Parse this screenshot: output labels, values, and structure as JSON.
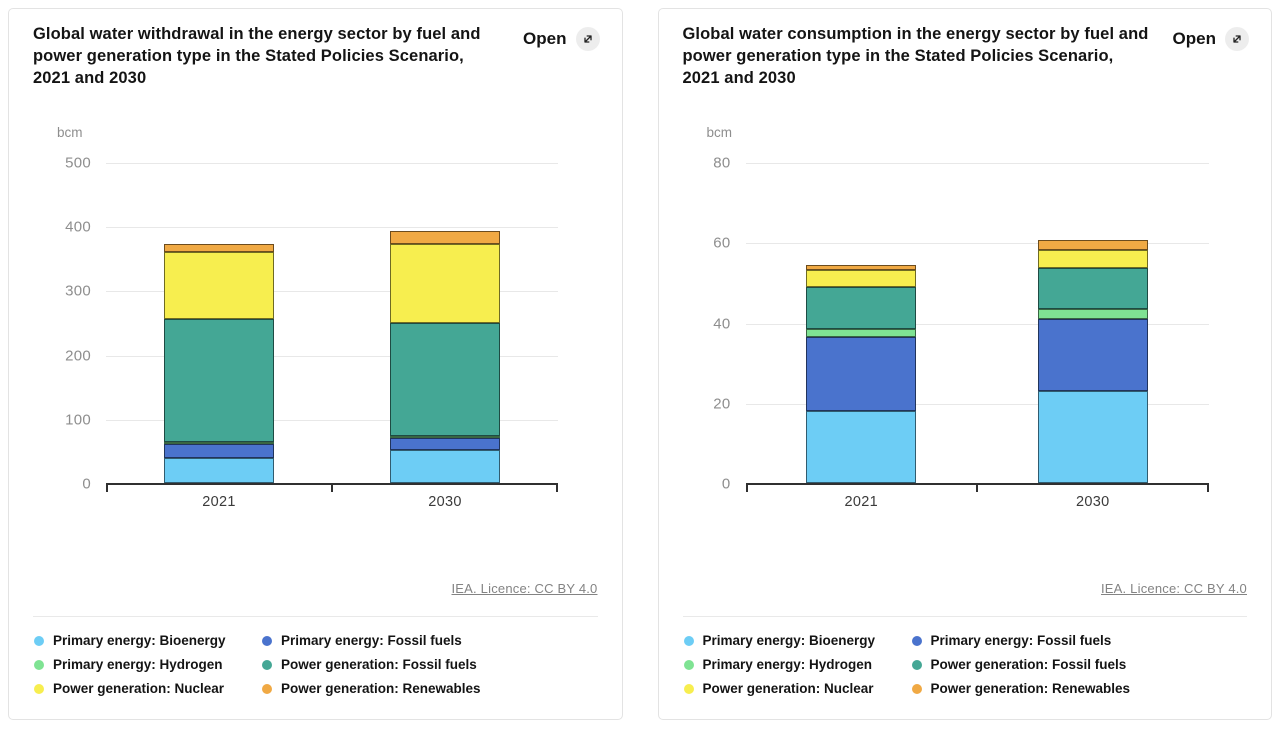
{
  "cards": [
    {
      "title": "Global water withdrawal in the energy sector by fuel and power generation type in the Stated Policies Scenario, 2021 and 2030",
      "open_label": "Open",
      "source": "IEA. Licence: CC BY 4.0"
    },
    {
      "title": "Global water consumption in the energy sector by fuel and power generation type in the Stated Policies Scenario, 2021 and 2030",
      "open_label": "Open",
      "source": "IEA. Licence: CC BY 4.0"
    }
  ],
  "chart_data": [
    {
      "type": "bar",
      "stacked": true,
      "title": "Global water withdrawal in the energy sector by fuel and power generation type in the Stated Policies Scenario, 2021 and 2030",
      "unit": "bcm",
      "categories": [
        "2021",
        "2030"
      ],
      "series": [
        {
          "name": "Primary energy: Bioenergy",
          "color": "#6DCDF5",
          "values": [
            39,
            51
          ]
        },
        {
          "name": "Primary energy: Fossil fuels",
          "color": "#4A73CD",
          "values": [
            22,
            20
          ]
        },
        {
          "name": "Primary energy: Hydrogen",
          "color": "#7FE393",
          "values": [
            1,
            3
          ]
        },
        {
          "name": "Power generation: Fossil fuels",
          "color": "#44A795",
          "values": [
            191,
            175
          ]
        },
        {
          "name": "Power generation: Nuclear",
          "color": "#F7EE4F",
          "values": [
            105,
            124
          ]
        },
        {
          "name": "Power generation: Renewables",
          "color": "#F0A944",
          "values": [
            13,
            19
          ]
        }
      ],
      "totals": [
        371,
        392
      ],
      "ylim": [
        0,
        500
      ],
      "yticks": [
        0,
        100,
        200,
        300,
        400,
        500
      ],
      "grid": true,
      "legend_position": "bottom",
      "source": "IEA. Licence: CC BY 4.0"
    },
    {
      "type": "bar",
      "stacked": true,
      "title": "Global water consumption in the energy sector by fuel and power generation type in the Stated Policies Scenario, 2021 and 2030",
      "unit": "bcm",
      "categories": [
        "2021",
        "2030"
      ],
      "series": [
        {
          "name": "Primary energy: Bioenergy",
          "color": "#6DCDF5",
          "values": [
            18,
            23
          ]
        },
        {
          "name": "Primary energy: Fossil fuels",
          "color": "#4A73CD",
          "values": [
            18.5,
            18
          ]
        },
        {
          "name": "Primary energy: Hydrogen",
          "color": "#7FE393",
          "values": [
            1.8,
            2.5
          ]
        },
        {
          "name": "Power generation: Fossil fuels",
          "color": "#44A795",
          "values": [
            10.5,
            10.2
          ]
        },
        {
          "name": "Power generation: Nuclear",
          "color": "#F7EE4F",
          "values": [
            4.3,
            4.3
          ]
        },
        {
          "name": "Power generation: Renewables",
          "color": "#F0A944",
          "values": [
            1.2,
            2.7
          ]
        }
      ],
      "totals": [
        54.3,
        60.7
      ],
      "ylim": [
        0,
        80
      ],
      "yticks": [
        0,
        20,
        40,
        60,
        80
      ],
      "grid": true,
      "legend_position": "bottom",
      "source": "IEA. Licence: CC BY 4.0"
    }
  ]
}
